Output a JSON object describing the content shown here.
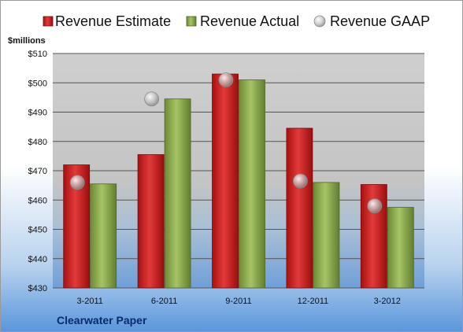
{
  "chart_data": {
    "type": "bar",
    "title": "",
    "unit_label": "$millions",
    "company": "Clearwater Paper",
    "categories": [
      "3-2011",
      "6-2011",
      "9-2011",
      "12-2011",
      "3-2012"
    ],
    "series": [
      {
        "name": "Revenue Estimate",
        "type": "bar",
        "color": "#cc1f1f",
        "values": [
          472,
          475.5,
          503,
          484.5,
          465.3
        ]
      },
      {
        "name": "Revenue Actual",
        "type": "bar",
        "color": "#8aa84a",
        "values": [
          465.5,
          494.5,
          501,
          466,
          457.5
        ]
      },
      {
        "name": "Revenue GAAP",
        "type": "marker",
        "color": "#b0b0b0",
        "values": [
          466,
          494.5,
          501,
          466.5,
          458
        ]
      }
    ],
    "ylim": [
      430,
      510
    ],
    "y_ticks": [
      "$430",
      "$440",
      "$450",
      "$460",
      "$470",
      "$480",
      "$490",
      "$500",
      "$510"
    ],
    "grid": true,
    "legend_position": "top"
  }
}
